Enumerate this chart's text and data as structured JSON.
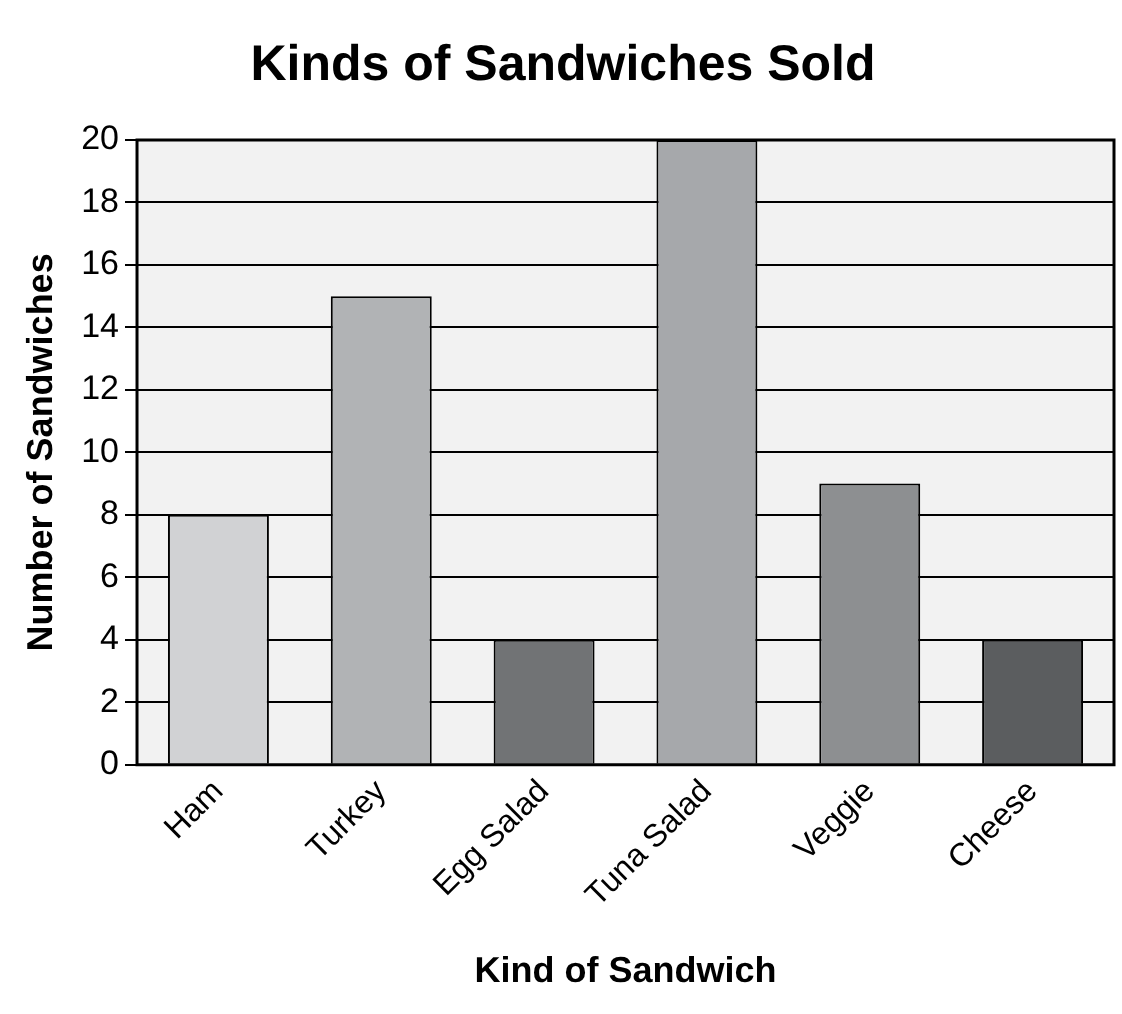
{
  "chart_data": {
    "type": "bar",
    "title": "Kinds of Sandwiches Sold",
    "xlabel": "Kind of Sandwich",
    "ylabel": "Number of Sandwiches",
    "categories": [
      "Ham",
      "Turkey",
      "Egg Salad",
      "Tuna Salad",
      "Veggie",
      "Cheese"
    ],
    "values": [
      8,
      15,
      4,
      20,
      9,
      4
    ],
    "colors": [
      "#d1d2d4",
      "#b1b3b5",
      "#717375",
      "#a6a8ab",
      "#8d8f91",
      "#5b5d5f"
    ],
    "ylim": [
      0,
      20
    ],
    "yticks": [
      0,
      2,
      4,
      6,
      8,
      10,
      12,
      14,
      16,
      18,
      20
    ],
    "grid": "y"
  }
}
